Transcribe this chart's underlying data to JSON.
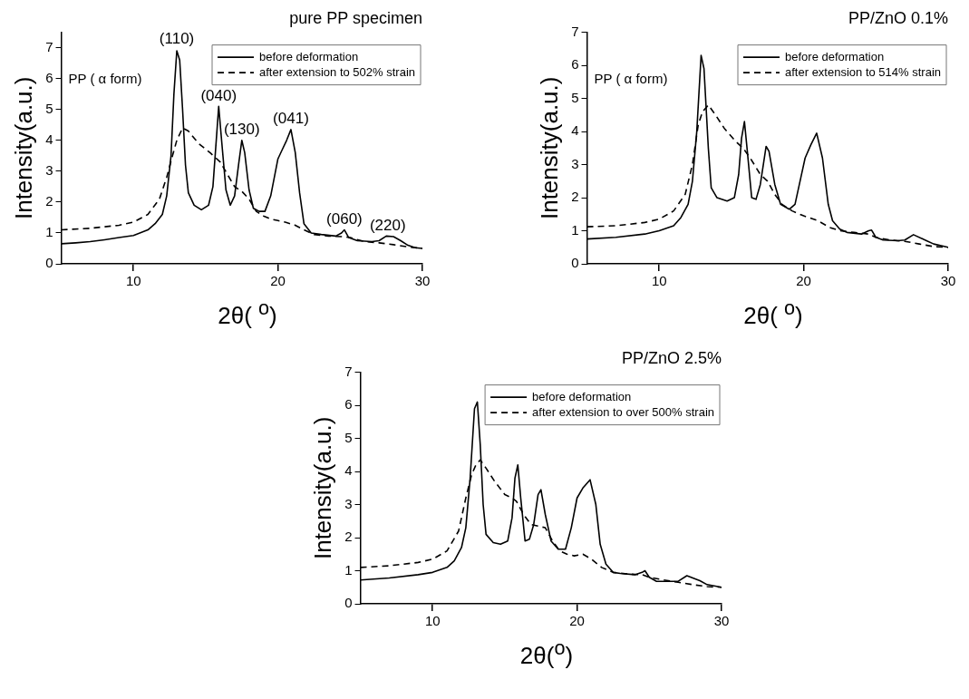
{
  "chart_data": [
    {
      "type": "line",
      "title": "pure PP specimen",
      "xlabel": "2θ( $^{o}$)",
      "ylabel": "Intensity(a.u.)",
      "xlim": [
        5,
        30
      ],
      "xticks": [
        10,
        20,
        30
      ],
      "ylim": [
        0,
        7.5
      ],
      "yticks": [
        0,
        1,
        2,
        3,
        4,
        5,
        6,
        7
      ],
      "grid": false,
      "legend": "top right",
      "annotations": [
        "PP ( α form)",
        {
          "text": "(110)",
          "x": 13.0,
          "y": 6.95
        },
        {
          "text": "(040)",
          "x": 15.9,
          "y": 5.1
        },
        {
          "text": "(130)",
          "x": 17.5,
          "y": 4.0
        },
        {
          "text": "(041)",
          "x": 20.9,
          "y": 4.35
        },
        {
          "text": "(060)",
          "x": 24.6,
          "y": 1.1
        },
        {
          "text": "(220)",
          "x": 27.6,
          "y": 0.9
        }
      ],
      "series": [
        {
          "name": "before deformation",
          "color": "#000000",
          "line_style": "solid",
          "x": [
            5,
            6,
            7,
            8,
            9,
            10,
            11,
            11.5,
            12,
            12.3,
            12.6,
            12.8,
            13.0,
            13.2,
            13.4,
            13.6,
            13.8,
            14.2,
            14.7,
            15.2,
            15.5,
            15.7,
            15.9,
            16.1,
            16.4,
            16.7,
            17.0,
            17.3,
            17.5,
            17.7,
            18.0,
            18.3,
            18.7,
            19.1,
            19.5,
            20.0,
            20.3,
            20.6,
            20.9,
            21.2,
            21.5,
            21.8,
            22.3,
            23,
            24,
            24.4,
            24.6,
            24.9,
            25.5,
            26.5,
            27,
            27.5,
            28,
            28.5,
            29,
            29.5,
            30
          ],
          "values": [
            0.65,
            0.68,
            0.72,
            0.78,
            0.85,
            0.92,
            1.1,
            1.3,
            1.6,
            2.2,
            3.5,
            5.5,
            6.9,
            6.6,
            5.0,
            3.2,
            2.3,
            1.9,
            1.75,
            1.9,
            2.5,
            3.8,
            5.1,
            4.0,
            2.4,
            1.9,
            2.2,
            3.3,
            4.0,
            3.6,
            2.4,
            1.8,
            1.7,
            1.7,
            2.2,
            3.4,
            3.7,
            4.0,
            4.35,
            3.6,
            2.3,
            1.3,
            1.0,
            0.95,
            0.9,
            1.0,
            1.1,
            0.85,
            0.75,
            0.72,
            0.75,
            0.9,
            0.88,
            0.75,
            0.6,
            0.52,
            0.5
          ]
        },
        {
          "name": "after extension to 502% strain",
          "color": "#000000",
          "line_style": "dashed",
          "x": [
            5,
            7,
            9,
            10,
            11,
            11.8,
            12.3,
            12.7,
            13.0,
            13.4,
            13.8,
            14.5,
            15.3,
            16,
            16.5,
            17,
            17.5,
            18,
            18.5,
            19,
            19.5,
            20,
            20.5,
            21.2,
            21.8,
            22.5,
            23.5,
            24.5,
            25,
            26,
            27,
            28,
            29,
            30
          ],
          "values": [
            1.1,
            1.15,
            1.25,
            1.35,
            1.6,
            2.1,
            2.8,
            3.5,
            4.0,
            4.4,
            4.3,
            3.9,
            3.6,
            3.3,
            2.9,
            2.5,
            2.35,
            2.1,
            1.7,
            1.55,
            1.45,
            1.4,
            1.35,
            1.25,
            1.1,
            0.95,
            0.9,
            0.88,
            0.85,
            0.72,
            0.68,
            0.62,
            0.55,
            0.5
          ]
        }
      ]
    },
    {
      "type": "line",
      "title": "PP/ZnO 0.1%",
      "xlabel": "2θ( $^{o}$)",
      "ylabel": "Intensity(a.u.)",
      "xlim": [
        5,
        30
      ],
      "xticks": [
        10,
        20,
        30
      ],
      "ylim": [
        0,
        7
      ],
      "yticks": [
        0,
        1,
        2,
        3,
        4,
        5,
        6,
        7
      ],
      "grid": false,
      "legend": "top right",
      "annotations": [
        "PP ( α form)"
      ],
      "series": [
        {
          "name": "before deformation",
          "color": "#000000",
          "line_style": "solid",
          "x": [
            5,
            7,
            9,
            10,
            11,
            11.5,
            12,
            12.3,
            12.6,
            12.9,
            13.1,
            13.4,
            13.6,
            14,
            14.7,
            15.2,
            15.5,
            15.7,
            15.9,
            16.1,
            16.4,
            16.7,
            17.0,
            17.4,
            17.6,
            18,
            18.4,
            19,
            19.4,
            19.8,
            20.1,
            20.5,
            20.9,
            21.3,
            21.7,
            22,
            22.5,
            23,
            24,
            24.5,
            24.7,
            25,
            25.5,
            26.5,
            27,
            27.6,
            28.5,
            29,
            30
          ],
          "values": [
            0.75,
            0.8,
            0.9,
            1.0,
            1.15,
            1.4,
            1.8,
            2.5,
            4.0,
            6.3,
            5.9,
            3.5,
            2.3,
            2.0,
            1.9,
            2.0,
            2.7,
            3.8,
            4.3,
            3.4,
            2.0,
            1.95,
            2.4,
            3.55,
            3.4,
            2.4,
            1.8,
            1.65,
            1.8,
            2.6,
            3.2,
            3.6,
            3.95,
            3.2,
            1.8,
            1.3,
            1.05,
            0.95,
            0.9,
            1.0,
            1.02,
            0.8,
            0.72,
            0.7,
            0.72,
            0.88,
            0.7,
            0.6,
            0.5
          ]
        },
        {
          "name": "after extension to 514% strain",
          "color": "#000000",
          "line_style": "dashed",
          "x": [
            5,
            7,
            8,
            9,
            10,
            11,
            11.8,
            12.3,
            12.7,
            13.0,
            13.4,
            13.9,
            14.5,
            15.3,
            15.8,
            16.3,
            17,
            17.5,
            18,
            18.5,
            19.2,
            20,
            21,
            21.8,
            22.5,
            23.5,
            24.5,
            25,
            26,
            27,
            28,
            29,
            30
          ],
          "values": [
            1.12,
            1.15,
            1.2,
            1.25,
            1.35,
            1.6,
            2.1,
            3.0,
            4.2,
            4.6,
            4.8,
            4.5,
            4.1,
            3.7,
            3.5,
            3.2,
            2.7,
            2.5,
            2.1,
            1.8,
            1.6,
            1.45,
            1.3,
            1.1,
            1.0,
            0.95,
            0.9,
            0.8,
            0.72,
            0.68,
            0.6,
            0.52,
            0.5
          ]
        }
      ]
    },
    {
      "type": "line",
      "title": "PP/ZnO 2.5%",
      "xlabel": "2θ($^{o}$)",
      "ylabel": "Intensity(a.u.)",
      "xlim": [
        5,
        30
      ],
      "xticks": [
        10,
        20,
        30
      ],
      "ylim": [
        0,
        7
      ],
      "yticks": [
        0,
        1,
        2,
        3,
        4,
        5,
        6,
        7
      ],
      "grid": false,
      "legend": "top right",
      "series": [
        {
          "name": "before deformation",
          "color": "#000000",
          "line_style": "solid",
          "x": [
            5,
            7,
            9,
            10,
            11,
            11.5,
            12,
            12.3,
            12.6,
            12.9,
            13.1,
            13.3,
            13.5,
            13.7,
            14.2,
            14.7,
            15.2,
            15.5,
            15.7,
            15.9,
            16.1,
            16.4,
            16.7,
            17.0,
            17.3,
            17.5,
            17.8,
            18.2,
            18.7,
            19.2,
            19.6,
            20.0,
            20.4,
            20.9,
            21.3,
            21.6,
            22,
            22.5,
            23,
            24,
            24.5,
            24.7,
            25,
            25.5,
            26.5,
            27,
            27.6,
            28.5,
            29,
            30
          ],
          "values": [
            0.72,
            0.78,
            0.88,
            0.95,
            1.1,
            1.3,
            1.7,
            2.3,
            3.8,
            5.9,
            6.1,
            4.8,
            3.0,
            2.1,
            1.85,
            1.8,
            1.9,
            2.6,
            3.8,
            4.2,
            3.2,
            1.9,
            1.95,
            2.4,
            3.3,
            3.45,
            2.7,
            1.9,
            1.65,
            1.65,
            2.3,
            3.2,
            3.5,
            3.75,
            3.0,
            1.8,
            1.2,
            0.95,
            0.92,
            0.88,
            0.95,
            1.0,
            0.8,
            0.68,
            0.68,
            0.68,
            0.85,
            0.7,
            0.58,
            0.5
          ]
        },
        {
          "name": "after extension to over 500% strain",
          "color": "#000000",
          "line_style": "dashed",
          "x": [
            5,
            7,
            9,
            10,
            11,
            11.8,
            12.3,
            12.7,
            13.0,
            13.3,
            13.7,
            14.3,
            15,
            15.5,
            15.8,
            16.3,
            16.8,
            17.3,
            17.8,
            18.3,
            18.8,
            19.3,
            19.8,
            20.4,
            21,
            21.7,
            22.5,
            23.5,
            24.5,
            25,
            26,
            27,
            28,
            29,
            30
          ],
          "values": [
            1.1,
            1.15,
            1.25,
            1.35,
            1.6,
            2.2,
            3.2,
            3.9,
            4.2,
            4.35,
            4.1,
            3.7,
            3.3,
            3.2,
            3.1,
            2.7,
            2.4,
            2.35,
            2.3,
            1.9,
            1.6,
            1.5,
            1.45,
            1.5,
            1.35,
            1.1,
            0.95,
            0.9,
            0.88,
            0.8,
            0.72,
            0.65,
            0.58,
            0.52,
            0.5
          ]
        }
      ]
    }
  ]
}
